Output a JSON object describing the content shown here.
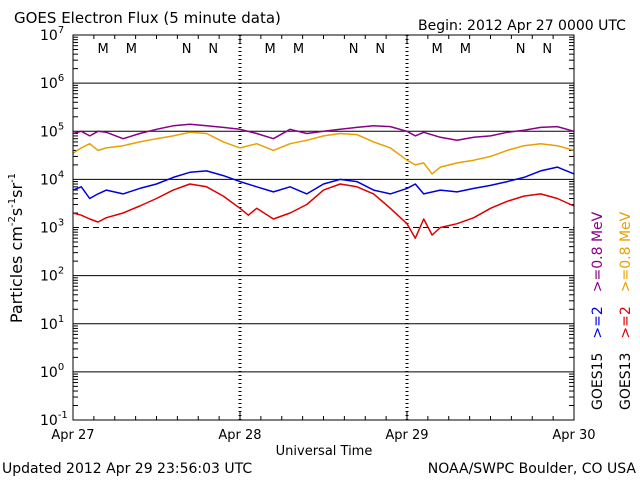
{
  "header": {
    "title": "GOES Electron Flux (5 minute data)",
    "begin": "Begin: 2012 Apr 27 0000 UTC"
  },
  "footer": {
    "updated": "Updated 2012 Apr 29 23:56:03 UTC",
    "source": "NOAA/SWPC Boulder, CO USA"
  },
  "axes": {
    "xlabel": "Universal Time",
    "ylabel_base": "Particles cm",
    "y_tick_labels": [
      "10",
      "10",
      "10",
      "10",
      "10",
      "10",
      "10",
      "10",
      "10"
    ],
    "y_tick_exponents": [
      "-1",
      "0",
      "1",
      "2",
      "3",
      "4",
      "5",
      "6",
      "7"
    ],
    "x_tick_labels": [
      "Apr 27",
      "Apr 28",
      "Apr 29",
      "Apr 30"
    ]
  },
  "markers": [
    "M",
    "M",
    "N",
    "N",
    "M",
    "M",
    "N",
    "N",
    "M",
    "M",
    "N",
    "N"
  ],
  "legend": [
    {
      "sat": "GOES15",
      "label": ">=2   >=0.8 MeV",
      "parts": [
        ">=2",
        ">=0.8"
      ],
      "colors": [
        "#0000dd",
        "#880088"
      ]
    },
    {
      "sat": "GOES13",
      "label": ">=2   >=0.8 MeV",
      "parts": [
        ">=2",
        ">=0.8"
      ],
      "colors": [
        "#dd0000",
        "#e8a000"
      ]
    }
  ],
  "legend_unit": "MeV",
  "colors": {
    "goes15_ge2": "#0000dd",
    "goes15_ge08": "#880088",
    "goes13_ge2": "#dd0000",
    "goes13_ge08": "#e8a000",
    "marker_M": "#cc0000",
    "marker_N_red": "#cc0000",
    "marker_N_blue": "#0000cc"
  },
  "chart_data": {
    "type": "line",
    "x_unit": "days since 2012 Apr 27 0000 UTC",
    "xlim": [
      0,
      3
    ],
    "ylim": [
      0.1,
      10000000
    ],
    "yscale": "log",
    "threshold": 1000,
    "series": [
      {
        "name": "GOES15 >=0.8 MeV",
        "color": "#880088",
        "x": [
          0.0,
          0.05,
          0.1,
          0.15,
          0.2,
          0.3,
          0.4,
          0.5,
          0.6,
          0.7,
          0.8,
          0.9,
          1.0,
          1.1,
          1.2,
          1.3,
          1.4,
          1.5,
          1.6,
          1.7,
          1.8,
          1.9,
          2.0,
          2.05,
          2.1,
          2.2,
          2.3,
          2.4,
          2.5,
          2.6,
          2.7,
          2.8,
          2.9,
          3.0
        ],
        "y": [
          90000,
          100000,
          80000,
          100000,
          95000,
          70000,
          90000,
          110000,
          130000,
          140000,
          130000,
          120000,
          110000,
          90000,
          70000,
          110000,
          90000,
          100000,
          110000,
          120000,
          130000,
          125000,
          100000,
          80000,
          95000,
          75000,
          65000,
          75000,
          80000,
          95000,
          105000,
          120000,
          125000,
          100000
        ]
      },
      {
        "name": "GOES13 >=0.8 MeV",
        "color": "#e8a000",
        "x": [
          0.0,
          0.05,
          0.1,
          0.15,
          0.2,
          0.3,
          0.4,
          0.5,
          0.6,
          0.7,
          0.8,
          0.9,
          1.0,
          1.1,
          1.2,
          1.3,
          1.4,
          1.5,
          1.6,
          1.7,
          1.8,
          1.9,
          2.0,
          2.05,
          2.1,
          2.15,
          2.2,
          2.3,
          2.4,
          2.5,
          2.6,
          2.7,
          2.8,
          2.9,
          3.0
        ],
        "y": [
          35000,
          45000,
          55000,
          40000,
          45000,
          50000,
          60000,
          70000,
          80000,
          95000,
          90000,
          60000,
          45000,
          55000,
          40000,
          55000,
          65000,
          80000,
          90000,
          85000,
          60000,
          45000,
          25000,
          20000,
          22000,
          13000,
          18000,
          22000,
          25000,
          30000,
          40000,
          50000,
          55000,
          50000,
          40000
        ]
      },
      {
        "name": "GOES15 >=2 MeV",
        "color": "#0000dd",
        "x": [
          0.0,
          0.05,
          0.1,
          0.15,
          0.2,
          0.3,
          0.4,
          0.5,
          0.6,
          0.7,
          0.8,
          0.9,
          1.0,
          1.1,
          1.2,
          1.3,
          1.4,
          1.5,
          1.6,
          1.7,
          1.8,
          1.9,
          2.0,
          2.05,
          2.1,
          2.2,
          2.3,
          2.4,
          2.5,
          2.6,
          2.7,
          2.8,
          2.9,
          3.0
        ],
        "y": [
          6000,
          7000,
          4000,
          5000,
          6000,
          5000,
          6500,
          8000,
          11000,
          14000,
          15000,
          12000,
          9000,
          7000,
          5500,
          7000,
          5000,
          8000,
          10000,
          9000,
          6000,
          5000,
          6500,
          8000,
          5000,
          6000,
          5500,
          6500,
          7500,
          9000,
          11000,
          15000,
          18000,
          13000
        ]
      },
      {
        "name": "GOES13 >=2 MeV",
        "color": "#dd0000",
        "x": [
          0.0,
          0.05,
          0.1,
          0.15,
          0.2,
          0.3,
          0.4,
          0.5,
          0.6,
          0.7,
          0.8,
          0.9,
          1.0,
          1.05,
          1.1,
          1.2,
          1.3,
          1.4,
          1.5,
          1.6,
          1.7,
          1.8,
          1.9,
          2.0,
          2.05,
          2.1,
          2.15,
          2.2,
          2.3,
          2.4,
          2.5,
          2.6,
          2.7,
          2.8,
          2.9,
          3.0
        ],
        "y": [
          2000,
          1800,
          1500,
          1300,
          1600,
          2000,
          2800,
          4000,
          6000,
          8000,
          7000,
          4500,
          2500,
          1800,
          2500,
          1500,
          2000,
          3000,
          6000,
          8000,
          7000,
          5000,
          2500,
          1200,
          600,
          1500,
          700,
          1000,
          1200,
          1600,
          2500,
          3500,
          4500,
          5000,
          4000,
          2800
        ]
      }
    ]
  }
}
